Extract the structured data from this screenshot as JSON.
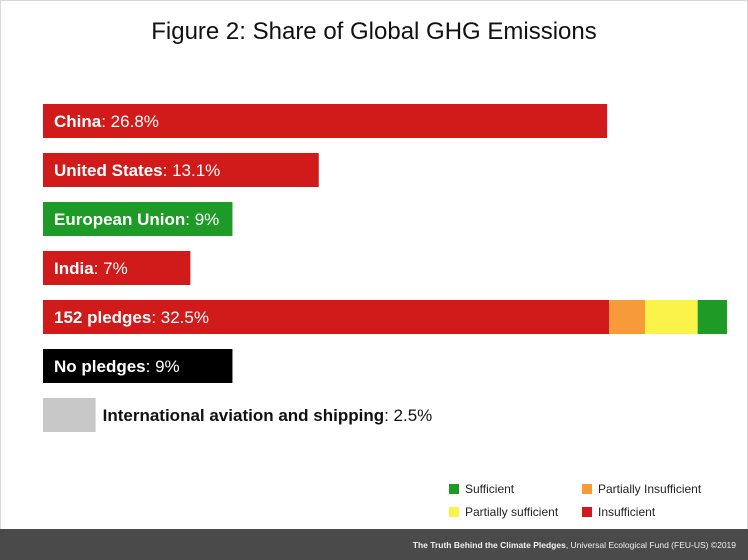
{
  "chart_data": {
    "type": "bar",
    "title": "Figure 2: Share of Global GHG Emissions",
    "orientation": "horizontal",
    "colors": {
      "insufficient": "#d11a1a",
      "sufficient": "#1e9a26",
      "partially_insufficient": "#f79a3a",
      "partially_sufficient": "#fbf34a",
      "no_pledges": "#000000",
      "aviation": "#c8c8c8"
    },
    "bars": [
      {
        "bold": "China",
        "value_text": ": 26.8%",
        "value": 26.8,
        "color": "#d11a1a",
        "label_color": "#ffffff",
        "label_outside": false
      },
      {
        "bold": "United States",
        "value_text": ": 13.1%",
        "value": 13.1,
        "color": "#d11a1a",
        "label_color": "#ffffff",
        "label_outside": false
      },
      {
        "bold": "European Union",
        "value_text": ": 9%",
        "value": 9,
        "color": "#1e9a26",
        "label_color": "#ffffff",
        "label_outside": false
      },
      {
        "bold": "India",
        "value_text": ": 7%",
        "value": 7,
        "color": "#d11a1a",
        "label_color": "#ffffff",
        "label_outside": false
      },
      {
        "bold": "152 pledges",
        "value_text": ": 32.5%",
        "value": 32.5,
        "color": "#d11a1a",
        "label_color": "#ffffff",
        "label_outside": false,
        "segments": [
          {
            "category": "insufficient",
            "value": 26.9,
            "color": "#d11a1a"
          },
          {
            "category": "partially_insufficient",
            "value": 1.7,
            "color": "#f79a3a"
          },
          {
            "category": "partially_sufficient",
            "value": 2.5,
            "color": "#fbf34a"
          },
          {
            "category": "sufficient",
            "value": 1.4,
            "color": "#1e9a26"
          }
        ]
      },
      {
        "bold": "No pledges",
        "value_text": ": 9%",
        "value": 9,
        "color": "#000000",
        "label_color": "#ffffff",
        "label_outside": false
      },
      {
        "bold": "International aviation and shipping",
        "value_text": ": 2.5%",
        "value": 2.5,
        "color": "#c8c8c8",
        "label_color": "#111111",
        "label_outside": true
      }
    ],
    "legend": [
      {
        "label": "Sufficient",
        "color": "#1e9a26"
      },
      {
        "label": "Partially Insufficient",
        "color": "#f79a3a"
      },
      {
        "label": "Partially sufficient",
        "color": "#fbf34a"
      },
      {
        "label": "Insufficient",
        "color": "#d11a1a"
      }
    ],
    "legend_position": "bottom-right",
    "grid": false
  },
  "footer": {
    "bold": "The Truth Behind the Climate Pledges",
    "rest": ", Universal Ecological Fund (FEU-US) ©2019"
  }
}
